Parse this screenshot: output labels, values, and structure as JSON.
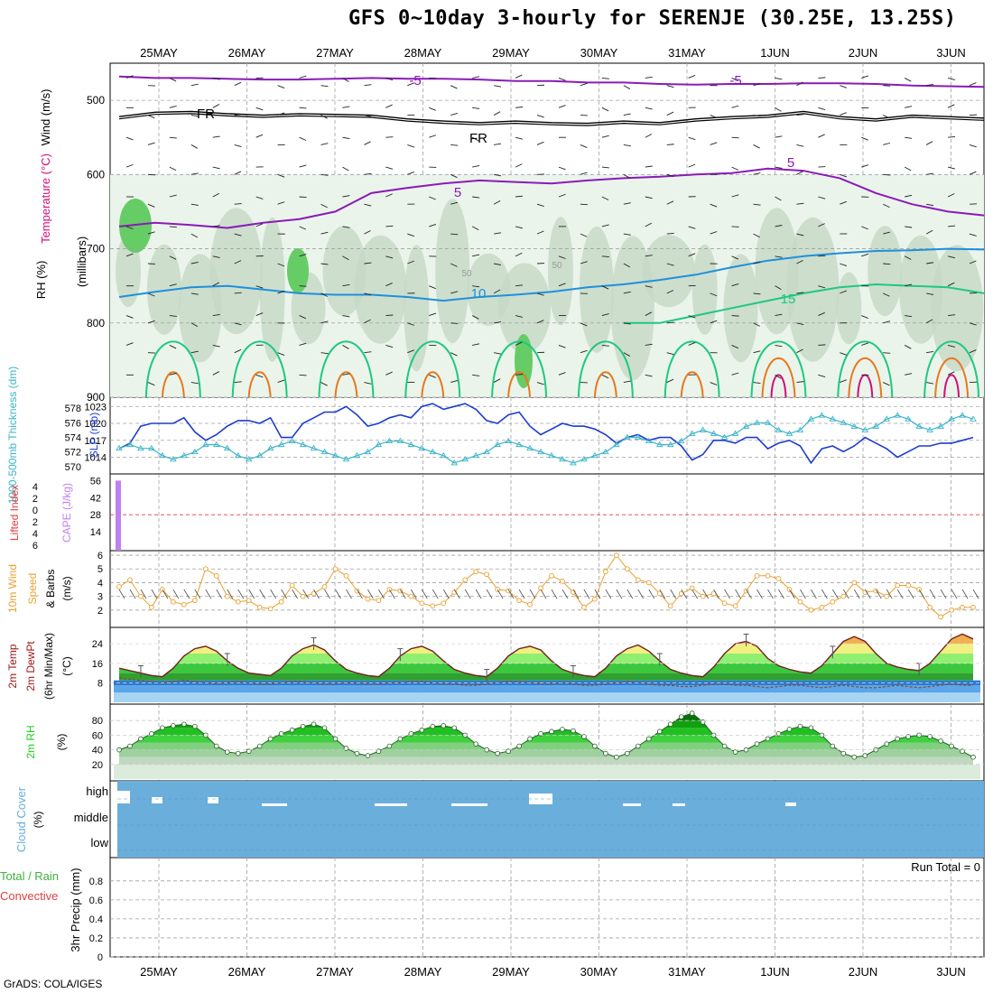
{
  "title": "GFS 0~10day 3-hourly for SERENJE (30.25E, 13.25S)",
  "footer": "GrADS: COLA/IGES",
  "colors": {
    "grid": "#a0a0a0",
    "purple": "#8a1ab8",
    "blue": "#1e90dc",
    "green": "#1ec882",
    "orange": "#e8781e",
    "magenta": "#d0107a",
    "slp": "#1e3ccc",
    "thick": "#3cb4c8",
    "wind10": "#e8a030",
    "cape": "#c080f0",
    "cloud": "#6aaedc",
    "rh": "#22cc22"
  },
  "chart_data": [
    {
      "type": "contour-profile",
      "panel": "upper-air",
      "ylabel_left": "Temperature (°C)",
      "ylabel_wind": "Wind (m/s)",
      "ylabel_rh": "RH (%)",
      "ylabel_units": "(millibars)",
      "x_ticks": [
        "25MAY",
        "26MAY",
        "27MAY",
        "28MAY",
        "29MAY",
        "30MAY",
        "31MAY",
        "1JUN",
        "2JUN",
        "3JUN"
      ],
      "y_ticks": [
        500,
        600,
        700,
        800,
        900
      ],
      "ylim": [
        450,
        900
      ],
      "contour_labels": [
        {
          "text": "-5",
          "level": -5
        },
        {
          "text": "-5",
          "level": -5
        },
        {
          "text": "FR",
          "level": 0
        },
        {
          "text": "FR",
          "level": 0
        },
        {
          "text": "5",
          "level": 5
        },
        {
          "text": "5",
          "level": 5
        },
        {
          "text": "10",
          "level": 10
        },
        {
          "text": "15",
          "level": 15
        },
        {
          "text": "50",
          "level": 50
        },
        {
          "text": "50",
          "level": 50
        }
      ],
      "isotherms": [
        {
          "name": "-5",
          "pressure": [
            468,
            470,
            470,
            471,
            472,
            472,
            471,
            470,
            471,
            471,
            472,
            474,
            474,
            476,
            476,
            478,
            479,
            478,
            478,
            477,
            477,
            478,
            480,
            481,
            482
          ]
        },
        {
          "name": "FR",
          "pressure": [
            522,
            516,
            515,
            518,
            520,
            518,
            519,
            520,
            525,
            528,
            530,
            528,
            530,
            531,
            528,
            530,
            525,
            522,
            520,
            515,
            522,
            525,
            520,
            522,
            524
          ]
        },
        {
          "name": "5",
          "pressure": [
            670,
            665,
            668,
            672,
            665,
            660,
            650,
            625,
            618,
            612,
            608,
            610,
            612,
            608,
            605,
            603,
            600,
            598,
            592,
            595,
            605,
            625,
            640,
            650,
            655
          ]
        },
        {
          "name": "10",
          "pressure": [
            765,
            758,
            752,
            750,
            755,
            760,
            762,
            762,
            765,
            770,
            765,
            762,
            758,
            752,
            748,
            742,
            735,
            725,
            716,
            710,
            706,
            703,
            702,
            700,
            701
          ]
        },
        {
          "name": "15",
          "pressure": [
            null,
            null,
            null,
            null,
            null,
            null,
            null,
            null,
            null,
            null,
            null,
            null,
            null,
            null,
            800,
            800,
            790,
            780,
            770,
            760,
            752,
            748,
            750,
            752,
            760
          ]
        }
      ]
    },
    {
      "type": "line",
      "panel": "slp-thickness",
      "ylabel_left": "1000-500mb Thickness (dm)",
      "ylabel_right": "SLP (mb)",
      "thickness_ticks": [
        570,
        572,
        574,
        576,
        578
      ],
      "slp_ticks": [
        1014,
        1017,
        1020,
        1023
      ],
      "x": [
        0,
        3,
        6,
        9,
        12,
        15,
        18,
        21,
        24,
        27,
        30,
        33,
        36,
        39,
        42,
        45,
        48,
        51,
        54,
        57,
        60,
        63,
        66,
        69,
        72,
        75,
        78,
        81,
        84,
        87,
        90,
        93,
        96,
        99,
        102,
        105,
        108,
        111,
        114,
        117,
        120,
        123,
        126,
        129,
        132,
        135,
        138,
        141,
        144,
        147,
        150,
        153,
        156,
        159,
        162,
        165,
        168,
        171,
        174,
        177,
        180,
        183,
        186,
        189,
        192,
        195,
        198,
        201,
        204,
        207,
        210,
        213,
        216,
        219,
        222,
        225,
        228,
        231,
        234,
        237
      ],
      "series": [
        {
          "name": "SLP (mb)",
          "values": [
            1015.5,
            1016.5,
            1019.5,
            1020,
            1020,
            1020,
            1021,
            1018.5,
            1017,
            1018,
            1019.5,
            1020.5,
            1020.5,
            1020,
            1021,
            1017.5,
            1017.5,
            1020,
            1021,
            1022,
            1022,
            1023,
            1021.5,
            1019.5,
            1020,
            1021,
            1021.5,
            1021,
            1023,
            1023.5,
            1022.5,
            1023,
            1023.5,
            1022.5,
            1020.5,
            1020,
            1021.5,
            1022,
            1019.5,
            1018,
            1019,
            1020,
            1019.5,
            1019.5,
            1019,
            1018,
            1016.5,
            1017.5,
            1018,
            1017,
            1017.5,
            1017.5,
            1016,
            1013.5,
            1014.5,
            1017,
            1017,
            1016.5,
            1017.5,
            1017.5,
            1015.5,
            1016.5,
            1017,
            1016,
            1013,
            1015.5,
            1016,
            1015,
            1016,
            1017.5,
            1016.5,
            1015.5,
            1014,
            1015,
            1016,
            1016,
            1016.5,
            1016.5,
            1017,
            1017.5
          ]
        },
        {
          "name": "Thickness (dm)",
          "values": [
            572.5,
            573,
            572.5,
            572.5,
            571.5,
            571,
            571.5,
            572,
            573,
            573,
            572.5,
            571.5,
            571,
            571.5,
            572.5,
            573,
            573.5,
            573,
            572.5,
            572,
            571.5,
            571,
            571.5,
            572,
            573,
            573.5,
            573.5,
            573,
            572.5,
            572,
            571.5,
            570.5,
            571,
            571.5,
            572,
            573,
            573.5,
            573,
            572.5,
            572,
            571.5,
            571,
            570.5,
            571,
            571.5,
            572,
            573,
            574,
            574,
            573.5,
            573,
            573,
            573.5,
            574.5,
            575,
            574.5,
            574,
            574.5,
            575.5,
            576,
            576,
            575,
            574.5,
            575,
            576.5,
            577,
            576.5,
            576,
            575.5,
            575,
            575.5,
            576.5,
            577,
            576.5,
            575.5,
            575,
            575.5,
            576.5,
            577,
            576.5
          ]
        }
      ]
    },
    {
      "type": "bar",
      "panel": "cape-li",
      "ylabel_left": "Lifted Index",
      "ylabel_right": "CAPE (J/kg)",
      "li_ticks": [
        -4,
        -2,
        0,
        2,
        4,
        6
      ],
      "li_tick_labels": [
        "4",
        "2",
        "0",
        "2",
        "4",
        "6"
      ],
      "cape_ticks": [
        14,
        28,
        42,
        56
      ],
      "cape_values": [
        {
          "x": 0,
          "value": 56
        }
      ],
      "li_zero_line": 0
    },
    {
      "type": "line",
      "panel": "wind10m",
      "ylabel": "10m Wind Speed & Barbs (m/s)",
      "y_ticks": [
        2,
        3,
        4,
        5,
        6
      ],
      "series": [
        {
          "name": "10m Wind Speed",
          "values": [
            3.7,
            4.2,
            3.0,
            2.2,
            3.5,
            2.6,
            2.4,
            2.7,
            5.0,
            4.5,
            3.0,
            2.6,
            2.7,
            2.2,
            2.1,
            2.6,
            3.8,
            3.0,
            3.2,
            3.7,
            5.0,
            4.5,
            3.4,
            2.8,
            2.7,
            3.5,
            3.4,
            3.0,
            2.5,
            2.3,
            2.5,
            3.3,
            4.2,
            4.8,
            4.6,
            3.5,
            3.4,
            2.7,
            2.4,
            3.6,
            4.5,
            4.1,
            3.3,
            2.2,
            2.8,
            4.8,
            6.0,
            5.0,
            4.2,
            4.0,
            3.2,
            2.3,
            3.2,
            3.6,
            3.0,
            3.2,
            2.5,
            2.3,
            3.4,
            4.5,
            4.5,
            4.3,
            3.5,
            2.6,
            2.0,
            2.2,
            2.6,
            3.0,
            4.0,
            3.3,
            3.4,
            3.0,
            3.8,
            3.8,
            3.5,
            2.2,
            1.5,
            2.0,
            2.2,
            2.2
          ]
        }
      ]
    },
    {
      "type": "area",
      "panel": "temp2m",
      "ylabel": "2m Temp 2m DewPt (6hr Min/Max) (°C)",
      "y_ticks": [
        8,
        16,
        24
      ],
      "series": [
        {
          "name": "2m Temp",
          "values": [
            14,
            13,
            12,
            11,
            10.5,
            14,
            19,
            22,
            23,
            21,
            17,
            14,
            12,
            11.5,
            11,
            14,
            19,
            22,
            23.5,
            21.5,
            17,
            13.5,
            12,
            11,
            10.5,
            14,
            19,
            22,
            23,
            21,
            17,
            13.5,
            12,
            11,
            10.5,
            14,
            19,
            22,
            23,
            21.5,
            17,
            13.5,
            12,
            11,
            10.5,
            14,
            19,
            22,
            23.5,
            21,
            17,
            13.5,
            12,
            11,
            10.5,
            14.5,
            20,
            24,
            25,
            23,
            18,
            15,
            13.5,
            12.5,
            12,
            15,
            20,
            25,
            27,
            25,
            20,
            16,
            14.5,
            13.5,
            13,
            16,
            21,
            26,
            28,
            26
          ]
        },
        {
          "name": "2m DewPt",
          "values": [
            10,
            9.5,
            9,
            8.5,
            8,
            8.5,
            9,
            8.5,
            8,
            7.5,
            8,
            8.5,
            8,
            7.5,
            7.5,
            8,
            8.5,
            8.5,
            8,
            7.5,
            7.5,
            8,
            8,
            7.5,
            7.5,
            8,
            8,
            8.5,
            8.5,
            8,
            7.5,
            7.5,
            7,
            7,
            7.5,
            8,
            8.5,
            8.5,
            8,
            7.5,
            7.5,
            8,
            7.5,
            7,
            7,
            7.5,
            8,
            8.5,
            8,
            7.5,
            7,
            7,
            6.5,
            6.5,
            7,
            7.5,
            7.5,
            7,
            7,
            6.5,
            6,
            6.5,
            7,
            7,
            6.5,
            6,
            6.5,
            7,
            6.5,
            6,
            6,
            6.5,
            7,
            6.5,
            6,
            6.5,
            7,
            7.5,
            7,
            7
          ]
        }
      ]
    },
    {
      "type": "area",
      "panel": "rh2m",
      "ylabel": "2m RH (%)",
      "y_ticks": [
        20,
        40,
        60,
        80
      ],
      "series": [
        {
          "name": "2m RH",
          "values": [
            40,
            45,
            55,
            62,
            70,
            73,
            75,
            72,
            60,
            45,
            37,
            35,
            38,
            45,
            55,
            62,
            67,
            72,
            75,
            70,
            55,
            42,
            35,
            32,
            38,
            45,
            55,
            62,
            67,
            72,
            73,
            70,
            60,
            48,
            40,
            35,
            38,
            45,
            55,
            62,
            65,
            68,
            66,
            58,
            45,
            35,
            30,
            35,
            45,
            55,
            65,
            75,
            85,
            90,
            78,
            60,
            45,
            37,
            40,
            48,
            55,
            62,
            68,
            72,
            70,
            60,
            45,
            35,
            30,
            32,
            40,
            48,
            55,
            58,
            60,
            58,
            52,
            45,
            38,
            30
          ]
        }
      ]
    },
    {
      "type": "area",
      "panel": "cloud",
      "ylabel": "Cloud Cover (%)",
      "y_tick_labels": [
        "high",
        "middle",
        "low"
      ]
    },
    {
      "type": "bar",
      "panel": "precip",
      "ylabel_left": "Total / Rain",
      "ylabel_left2": "Convective",
      "ylabel": "3hr Precip (mm)",
      "y_ticks": [
        0,
        0.2,
        0.4,
        0.6,
        0.8
      ],
      "run_total_label": "Run Total = 0",
      "values": []
    }
  ]
}
